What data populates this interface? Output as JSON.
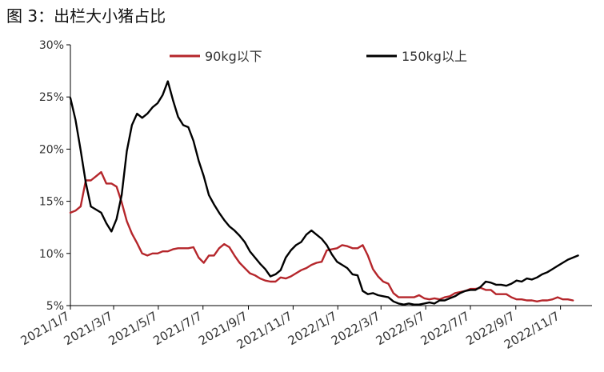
{
  "figure_title": "图 3：出栏大小猪占比",
  "chart_data": {
    "type": "line",
    "title": "",
    "xlabel": "",
    "ylabel": "",
    "ylim": [
      5,
      30
    ],
    "y_ticks": [
      5,
      10,
      15,
      20,
      25,
      30
    ],
    "y_tick_labels": [
      "5%",
      "10%",
      "15%",
      "20%",
      "25%",
      "30%"
    ],
    "x_range": [
      "2021-01-07",
      "2022-12-20"
    ],
    "x_ticks": [
      "2021-01-07",
      "2021-03-07",
      "2021-05-07",
      "2021-07-07",
      "2021-09-07",
      "2021-11-07",
      "2022-01-07",
      "2022-03-07",
      "2022-05-07",
      "2022-07-07",
      "2022-09-07",
      "2022-11-07"
    ],
    "x_tick_labels": [
      "2021/1/7",
      "2021/3/7",
      "2021/5/7",
      "2021/7/7",
      "2021/9/7",
      "2021/11/7",
      "2022/1/7",
      "2022/3/7",
      "2022/5/7",
      "2022/7/7",
      "2022/9/7",
      "2022/11/7"
    ],
    "grid": false,
    "legend": "top",
    "series": [
      {
        "name": "90kg以下",
        "color": "#b5262b",
        "points": [
          [
            "2021-01-07",
            13.9
          ],
          [
            "2021-01-14",
            14.1
          ],
          [
            "2021-01-21",
            14.5
          ],
          [
            "2021-01-28",
            17.0
          ],
          [
            "2021-02-04",
            17.0
          ],
          [
            "2021-02-11",
            17.4
          ],
          [
            "2021-02-18",
            17.8
          ],
          [
            "2021-02-25",
            16.7
          ],
          [
            "2021-03-04",
            16.7
          ],
          [
            "2021-03-11",
            16.4
          ],
          [
            "2021-03-18",
            14.9
          ],
          [
            "2021-03-25",
            13.1
          ],
          [
            "2021-04-01",
            11.9
          ],
          [
            "2021-04-08",
            11.0
          ],
          [
            "2021-04-15",
            10.0
          ],
          [
            "2021-04-22",
            9.8
          ],
          [
            "2021-04-29",
            10.0
          ],
          [
            "2021-05-06",
            10.0
          ],
          [
            "2021-05-13",
            10.2
          ],
          [
            "2021-05-20",
            10.2
          ],
          [
            "2021-05-27",
            10.4
          ],
          [
            "2021-06-03",
            10.5
          ],
          [
            "2021-06-10",
            10.5
          ],
          [
            "2021-06-17",
            10.5
          ],
          [
            "2021-06-24",
            10.6
          ],
          [
            "2021-07-01",
            9.6
          ],
          [
            "2021-07-08",
            9.1
          ],
          [
            "2021-07-15",
            9.8
          ],
          [
            "2021-07-22",
            9.8
          ],
          [
            "2021-07-29",
            10.5
          ],
          [
            "2021-08-05",
            10.9
          ],
          [
            "2021-08-12",
            10.6
          ],
          [
            "2021-08-19",
            9.8
          ],
          [
            "2021-08-26",
            9.1
          ],
          [
            "2021-09-02",
            8.6
          ],
          [
            "2021-09-09",
            8.1
          ],
          [
            "2021-09-16",
            7.9
          ],
          [
            "2021-09-23",
            7.6
          ],
          [
            "2021-09-30",
            7.4
          ],
          [
            "2021-10-07",
            7.3
          ],
          [
            "2021-10-14",
            7.3
          ],
          [
            "2021-10-21",
            7.7
          ],
          [
            "2021-10-28",
            7.6
          ],
          [
            "2021-11-04",
            7.8
          ],
          [
            "2021-11-11",
            8.1
          ],
          [
            "2021-11-18",
            8.4
          ],
          [
            "2021-11-25",
            8.6
          ],
          [
            "2021-12-02",
            8.9
          ],
          [
            "2021-12-09",
            9.1
          ],
          [
            "2021-12-16",
            9.2
          ],
          [
            "2021-12-23",
            10.3
          ],
          [
            "2021-12-30",
            10.4
          ],
          [
            "2022-01-06",
            10.5
          ],
          [
            "2022-01-13",
            10.8
          ],
          [
            "2022-01-20",
            10.7
          ],
          [
            "2022-01-27",
            10.5
          ],
          [
            "2022-02-03",
            10.5
          ],
          [
            "2022-02-10",
            10.8
          ],
          [
            "2022-02-17",
            9.8
          ],
          [
            "2022-02-24",
            8.5
          ],
          [
            "2022-03-03",
            7.8
          ],
          [
            "2022-03-10",
            7.3
          ],
          [
            "2022-03-17",
            7.1
          ],
          [
            "2022-03-24",
            6.2
          ],
          [
            "2022-03-31",
            5.8
          ],
          [
            "2022-04-07",
            5.8
          ],
          [
            "2022-04-14",
            5.8
          ],
          [
            "2022-04-21",
            5.8
          ],
          [
            "2022-04-28",
            6.0
          ],
          [
            "2022-05-05",
            5.7
          ],
          [
            "2022-05-12",
            5.6
          ],
          [
            "2022-05-19",
            5.7
          ],
          [
            "2022-05-26",
            5.6
          ],
          [
            "2022-06-02",
            5.8
          ],
          [
            "2022-06-09",
            5.9
          ],
          [
            "2022-06-16",
            6.2
          ],
          [
            "2022-06-23",
            6.3
          ],
          [
            "2022-06-30",
            6.4
          ],
          [
            "2022-07-07",
            6.6
          ],
          [
            "2022-07-14",
            6.6
          ],
          [
            "2022-07-21",
            6.7
          ],
          [
            "2022-07-28",
            6.5
          ],
          [
            "2022-08-04",
            6.5
          ],
          [
            "2022-08-11",
            6.1
          ],
          [
            "2022-08-18",
            6.1
          ],
          [
            "2022-08-25",
            6.1
          ],
          [
            "2022-09-01",
            5.8
          ],
          [
            "2022-09-08",
            5.6
          ],
          [
            "2022-09-15",
            5.6
          ],
          [
            "2022-09-22",
            5.5
          ],
          [
            "2022-09-29",
            5.5
          ],
          [
            "2022-10-06",
            5.4
          ],
          [
            "2022-10-13",
            5.5
          ],
          [
            "2022-10-20",
            5.5
          ],
          [
            "2022-10-27",
            5.6
          ],
          [
            "2022-11-03",
            5.8
          ],
          [
            "2022-11-10",
            5.6
          ],
          [
            "2022-11-17",
            5.6
          ],
          [
            "2022-11-24",
            5.5
          ]
        ]
      },
      {
        "name": "150kg以上",
        "color": "#000000",
        "points": [
          [
            "2021-01-07",
            24.9
          ],
          [
            "2021-01-14",
            22.8
          ],
          [
            "2021-01-21",
            19.9
          ],
          [
            "2021-01-28",
            16.8
          ],
          [
            "2021-02-04",
            14.5
          ],
          [
            "2021-02-11",
            14.2
          ],
          [
            "2021-02-18",
            13.9
          ],
          [
            "2021-02-25",
            12.9
          ],
          [
            "2021-03-04",
            12.1
          ],
          [
            "2021-03-11",
            13.3
          ],
          [
            "2021-03-18",
            15.6
          ],
          [
            "2021-03-25",
            19.8
          ],
          [
            "2021-04-01",
            22.3
          ],
          [
            "2021-04-08",
            23.4
          ],
          [
            "2021-04-15",
            23.0
          ],
          [
            "2021-04-22",
            23.4
          ],
          [
            "2021-04-29",
            24.0
          ],
          [
            "2021-05-06",
            24.4
          ],
          [
            "2021-05-13",
            25.2
          ],
          [
            "2021-05-20",
            26.5
          ],
          [
            "2021-05-27",
            24.7
          ],
          [
            "2021-06-03",
            23.1
          ],
          [
            "2021-06-10",
            22.3
          ],
          [
            "2021-06-17",
            22.1
          ],
          [
            "2021-06-24",
            20.8
          ],
          [
            "2021-07-01",
            18.9
          ],
          [
            "2021-07-08",
            17.4
          ],
          [
            "2021-07-15",
            15.6
          ],
          [
            "2021-07-22",
            14.7
          ],
          [
            "2021-07-29",
            13.9
          ],
          [
            "2021-08-05",
            13.2
          ],
          [
            "2021-08-12",
            12.6
          ],
          [
            "2021-08-19",
            12.2
          ],
          [
            "2021-08-26",
            11.7
          ],
          [
            "2021-09-02",
            11.1
          ],
          [
            "2021-09-09",
            10.2
          ],
          [
            "2021-09-16",
            9.6
          ],
          [
            "2021-09-23",
            9.0
          ],
          [
            "2021-09-30",
            8.5
          ],
          [
            "2021-10-07",
            7.8
          ],
          [
            "2021-10-14",
            8.0
          ],
          [
            "2021-10-21",
            8.4
          ],
          [
            "2021-10-28",
            9.6
          ],
          [
            "2021-11-04",
            10.3
          ],
          [
            "2021-11-11",
            10.8
          ],
          [
            "2021-11-18",
            11.1
          ],
          [
            "2021-11-25",
            11.8
          ],
          [
            "2021-12-02",
            12.2
          ],
          [
            "2021-12-09",
            11.8
          ],
          [
            "2021-12-16",
            11.4
          ],
          [
            "2021-12-23",
            10.8
          ],
          [
            "2021-12-30",
            9.9
          ],
          [
            "2022-01-06",
            9.2
          ],
          [
            "2022-01-13",
            8.9
          ],
          [
            "2022-01-20",
            8.6
          ],
          [
            "2022-01-27",
            8.0
          ],
          [
            "2022-02-03",
            7.9
          ],
          [
            "2022-02-10",
            6.4
          ],
          [
            "2022-02-17",
            6.1
          ],
          [
            "2022-02-24",
            6.2
          ],
          [
            "2022-03-03",
            6.0
          ],
          [
            "2022-03-10",
            5.9
          ],
          [
            "2022-03-17",
            5.8
          ],
          [
            "2022-03-24",
            5.4
          ],
          [
            "2022-03-31",
            5.2
          ],
          [
            "2022-04-07",
            5.1
          ],
          [
            "2022-04-14",
            5.2
          ],
          [
            "2022-04-21",
            5.1
          ],
          [
            "2022-04-28",
            5.1
          ],
          [
            "2022-05-05",
            5.2
          ],
          [
            "2022-05-12",
            5.3
          ],
          [
            "2022-05-19",
            5.2
          ],
          [
            "2022-05-26",
            5.5
          ],
          [
            "2022-06-02",
            5.5
          ],
          [
            "2022-06-09",
            5.7
          ],
          [
            "2022-06-16",
            5.9
          ],
          [
            "2022-06-23",
            6.2
          ],
          [
            "2022-06-30",
            6.4
          ],
          [
            "2022-07-07",
            6.5
          ],
          [
            "2022-07-14",
            6.5
          ],
          [
            "2022-07-21",
            6.8
          ],
          [
            "2022-07-28",
            7.3
          ],
          [
            "2022-08-04",
            7.2
          ],
          [
            "2022-08-11",
            7.0
          ],
          [
            "2022-08-18",
            7.0
          ],
          [
            "2022-08-25",
            6.9
          ],
          [
            "2022-09-01",
            7.1
          ],
          [
            "2022-09-08",
            7.4
          ],
          [
            "2022-09-15",
            7.3
          ],
          [
            "2022-09-22",
            7.6
          ],
          [
            "2022-09-29",
            7.5
          ],
          [
            "2022-10-06",
            7.7
          ],
          [
            "2022-10-13",
            8.0
          ],
          [
            "2022-10-20",
            8.2
          ],
          [
            "2022-10-27",
            8.5
          ],
          [
            "2022-11-03",
            8.8
          ],
          [
            "2022-11-10",
            9.1
          ],
          [
            "2022-11-17",
            9.4
          ],
          [
            "2022-11-24",
            9.6
          ],
          [
            "2022-12-01",
            9.8
          ]
        ]
      }
    ]
  }
}
